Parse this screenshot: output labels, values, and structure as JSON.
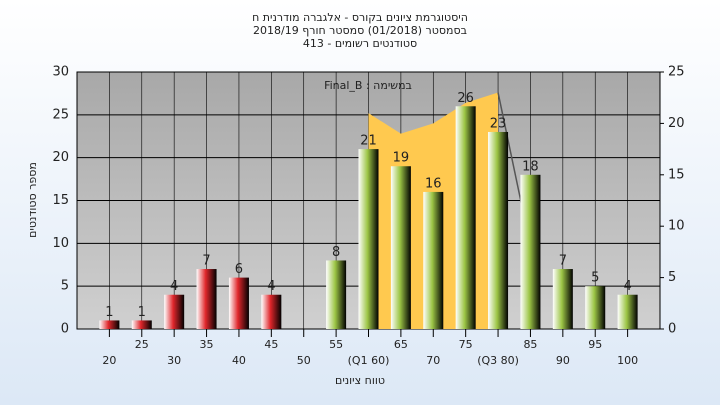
{
  "chart_data": {
    "type": "bar",
    "title": "היסטוגרמת ציונים בקורס - אלגברה מודרנית ח",
    "subtitle": "בסמסטר  (01/2018)  סמסטר חורף  2018/19",
    "subtitle2": "סטודנטים רשומים - 413",
    "annotation": "Final_B : במשימה",
    "ylabel": "מספר סטודנטים",
    "xlabel": "טווח ציונים",
    "x": [
      20,
      25,
      30,
      35,
      40,
      45,
      50,
      55,
      60,
      65,
      70,
      75,
      80,
      85,
      90,
      95,
      100
    ],
    "values": [
      1,
      1,
      4,
      7,
      6,
      4,
      0,
      8,
      21,
      19,
      16,
      26,
      23,
      18,
      7,
      5,
      4
    ],
    "colors": [
      "#e0262b",
      "#e0262b",
      "#e0262b",
      "#e0262b",
      "#e0262b",
      "#e0262b",
      "#e0262b",
      "#9cc545",
      "#9cc545",
      "#9cc545",
      "#9cc545",
      "#9cc545",
      "#9cc545",
      "#9cc545",
      "#9cc545",
      "#9cc545",
      "#9cc545"
    ],
    "xlim": [
      15,
      105
    ],
    "xticks": [
      20,
      25,
      30,
      35,
      40,
      45,
      50,
      55,
      {
        "value": 60,
        "label": "(Q1 60)"
      },
      65,
      70,
      75,
      {
        "value": 80,
        "label": "(Q3 80)"
      },
      85,
      90,
      95,
      100
    ],
    "ylim": [
      0,
      30
    ],
    "yticks": [
      0,
      5,
      10,
      15,
      20,
      25,
      30
    ],
    "y2lim": [
      0,
      25
    ],
    "y2ticks": [
      0,
      5,
      10,
      15,
      20,
      25
    ],
    "grid": true,
    "overlays": [
      {
        "type": "area",
        "axis": "y2",
        "color": "#ffc94f",
        "x": [
          60,
          65,
          70,
          75,
          80
        ],
        "values": [
          21,
          19,
          20,
          22,
          23
        ]
      },
      {
        "type": "line",
        "axis": "y2",
        "color": "#555555",
        "x": [
          80,
          85
        ],
        "values": [
          23,
          8
        ]
      }
    ]
  }
}
